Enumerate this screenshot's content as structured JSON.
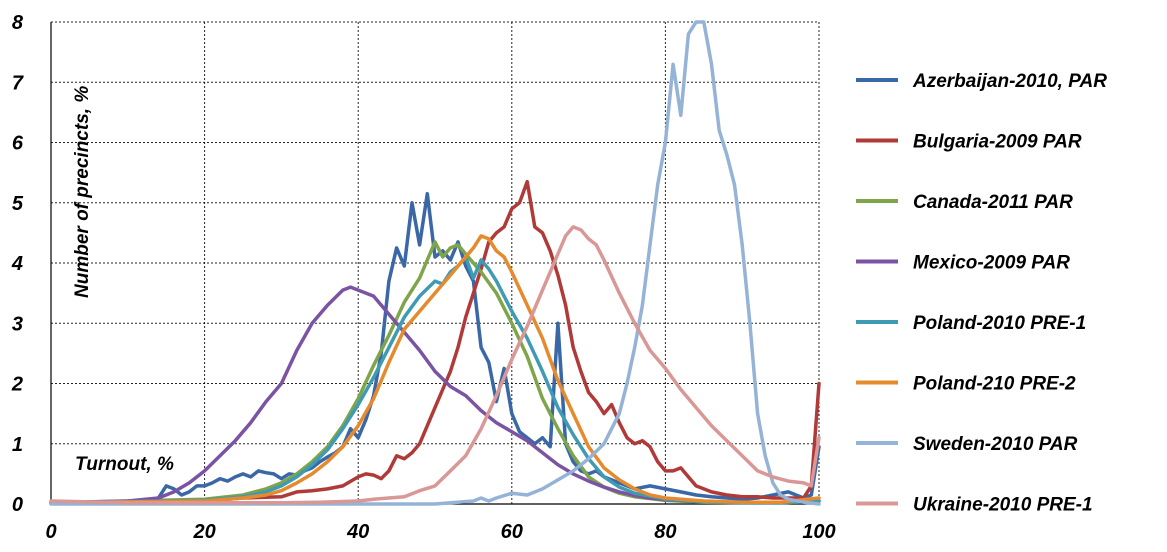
{
  "chart_data": {
    "type": "line",
    "xlabel": "Turnout, %",
    "ylabel": "Number of precincts, %",
    "xlim": [
      0,
      100
    ],
    "ylim": [
      0,
      8
    ],
    "x_ticks": [
      "0",
      "20",
      "40",
      "60",
      "80",
      "100"
    ],
    "y_ticks": [
      "0",
      "1",
      "2",
      "3",
      "4",
      "5",
      "6",
      "7",
      "8"
    ],
    "grid": true,
    "legend_position": "right",
    "series": [
      {
        "name": "Azerbaijan-2010, PAR",
        "color": "#3a67a6",
        "x": [
          0,
          10,
          12,
          14,
          15,
          16,
          17,
          18,
          19,
          20,
          21,
          22,
          23,
          24,
          25,
          26,
          27,
          28,
          29,
          30,
          31,
          32,
          33,
          34,
          35,
          36,
          37,
          38,
          39,
          40,
          41,
          42,
          43,
          44,
          45,
          46,
          47,
          48,
          49,
          50,
          51,
          52,
          53,
          54,
          55,
          56,
          57,
          58,
          59,
          60,
          61,
          62,
          63,
          64,
          65,
          66,
          67,
          68,
          69,
          70,
          71,
          72,
          73,
          74,
          75,
          76,
          78,
          80,
          82,
          84,
          86,
          88,
          90,
          92,
          94,
          96,
          98,
          99,
          100
        ],
        "values": [
          0.02,
          0.02,
          0.05,
          0.1,
          0.3,
          0.25,
          0.15,
          0.2,
          0.3,
          0.3,
          0.35,
          0.42,
          0.38,
          0.45,
          0.5,
          0.45,
          0.55,
          0.52,
          0.5,
          0.42,
          0.5,
          0.48,
          0.55,
          0.6,
          0.7,
          0.78,
          0.85,
          0.95,
          1.25,
          1.1,
          1.4,
          1.8,
          2.5,
          3.7,
          4.25,
          3.95,
          5.0,
          4.3,
          5.15,
          4.1,
          4.2,
          4.05,
          4.35,
          3.95,
          3.7,
          2.6,
          2.35,
          1.7,
          2.25,
          1.5,
          1.2,
          1.1,
          1.0,
          1.1,
          0.95,
          3.0,
          1.0,
          0.7,
          0.55,
          0.5,
          0.55,
          0.45,
          0.4,
          0.35,
          0.3,
          0.25,
          0.3,
          0.25,
          0.2,
          0.15,
          0.12,
          0.1,
          0.08,
          0.1,
          0.15,
          0.2,
          0.1,
          0.15,
          0.95
        ]
      },
      {
        "name": "Bulgaria-2009 PAR",
        "color": "#b03a38",
        "x": [
          0,
          10,
          20,
          25,
          30,
          32,
          34,
          36,
          38,
          40,
          41,
          42,
          43,
          44,
          45,
          46,
          47,
          48,
          49,
          50,
          51,
          52,
          53,
          54,
          55,
          56,
          57,
          58,
          59,
          60,
          61,
          62,
          63,
          64,
          65,
          66,
          67,
          68,
          69,
          70,
          71,
          72,
          73,
          74,
          75,
          76,
          77,
          78,
          79,
          80,
          81,
          82,
          83,
          84,
          85,
          86,
          88,
          90,
          92,
          94,
          96,
          98,
          99,
          100
        ],
        "values": [
          0.02,
          0.03,
          0.05,
          0.1,
          0.12,
          0.2,
          0.22,
          0.25,
          0.3,
          0.45,
          0.5,
          0.48,
          0.42,
          0.55,
          0.8,
          0.75,
          0.85,
          1.0,
          1.3,
          1.6,
          1.9,
          2.2,
          2.6,
          3.1,
          3.5,
          3.9,
          4.35,
          4.5,
          4.6,
          4.9,
          5.0,
          5.35,
          4.6,
          4.5,
          4.2,
          3.8,
          3.3,
          2.6,
          2.2,
          1.85,
          1.7,
          1.5,
          1.65,
          1.35,
          1.1,
          1.0,
          1.05,
          0.95,
          0.7,
          0.55,
          0.55,
          0.6,
          0.45,
          0.3,
          0.25,
          0.2,
          0.15,
          0.12,
          0.12,
          0.1,
          0.1,
          0.1,
          0.3,
          2.0
        ]
      },
      {
        "name": "Canada-2011 PAR",
        "color": "#7fa54b",
        "x": [
          0,
          20,
          25,
          28,
          30,
          32,
          34,
          36,
          38,
          40,
          42,
          44,
          46,
          48,
          49,
          50,
          51,
          52,
          53,
          54,
          56,
          58,
          60,
          62,
          64,
          66,
          68,
          70,
          72,
          74,
          76,
          80,
          85,
          90,
          95,
          100
        ],
        "values": [
          0.02,
          0.08,
          0.15,
          0.25,
          0.35,
          0.5,
          0.7,
          0.95,
          1.3,
          1.75,
          2.3,
          2.8,
          3.35,
          3.75,
          4.05,
          4.35,
          4.1,
          4.25,
          4.3,
          4.15,
          3.85,
          3.5,
          3.0,
          2.45,
          1.75,
          1.25,
          0.8,
          0.45,
          0.28,
          0.18,
          0.12,
          0.06,
          0.03,
          0.02,
          0.02,
          0.05
        ]
      },
      {
        "name": "Mexico-2009 PAR",
        "color": "#7b53a3",
        "x": [
          0,
          10,
          14,
          16,
          18,
          20,
          22,
          24,
          26,
          28,
          30,
          32,
          34,
          36,
          38,
          39,
          40,
          42,
          44,
          46,
          48,
          50,
          52,
          54,
          56,
          58,
          60,
          62,
          64,
          66,
          68,
          70,
          72,
          74,
          76,
          78,
          80,
          85,
          90,
          95,
          100
        ],
        "values": [
          0.02,
          0.05,
          0.1,
          0.2,
          0.35,
          0.55,
          0.8,
          1.05,
          1.35,
          1.7,
          2.0,
          2.55,
          3.0,
          3.3,
          3.55,
          3.6,
          3.55,
          3.45,
          3.15,
          2.85,
          2.55,
          2.2,
          1.95,
          1.8,
          1.55,
          1.35,
          1.2,
          1.05,
          0.85,
          0.65,
          0.5,
          0.38,
          0.28,
          0.2,
          0.14,
          0.1,
          0.07,
          0.04,
          0.02,
          0.02,
          0.05
        ]
      },
      {
        "name": "Poland-2010 PRE-1",
        "color": "#3f9ab4",
        "x": [
          0,
          20,
          25,
          28,
          30,
          32,
          34,
          36,
          38,
          40,
          42,
          44,
          46,
          48,
          50,
          51,
          52,
          53,
          54,
          55,
          56,
          57,
          58,
          60,
          62,
          64,
          66,
          68,
          70,
          72,
          74,
          76,
          80,
          85,
          90,
          95,
          100
        ],
        "values": [
          0.02,
          0.06,
          0.12,
          0.2,
          0.3,
          0.45,
          0.65,
          0.9,
          1.25,
          1.65,
          2.1,
          2.6,
          3.1,
          3.45,
          3.7,
          3.65,
          3.85,
          3.95,
          4.1,
          3.75,
          4.05,
          3.9,
          3.7,
          3.2,
          2.75,
          2.2,
          1.6,
          1.15,
          0.75,
          0.45,
          0.28,
          0.18,
          0.08,
          0.04,
          0.02,
          0.02,
          0.05
        ]
      },
      {
        "name": "Poland-210 PRE-2",
        "color": "#e68a2e",
        "x": [
          0,
          20,
          25,
          28,
          30,
          32,
          34,
          36,
          38,
          40,
          42,
          44,
          46,
          48,
          50,
          52,
          54,
          55,
          56,
          57,
          58,
          59,
          60,
          62,
          64,
          66,
          68,
          70,
          72,
          74,
          76,
          78,
          80,
          85,
          90,
          95,
          100
        ],
        "values": [
          0.02,
          0.05,
          0.1,
          0.15,
          0.22,
          0.35,
          0.5,
          0.7,
          0.95,
          1.3,
          1.75,
          2.35,
          2.9,
          3.2,
          3.5,
          3.8,
          4.1,
          4.25,
          4.45,
          4.4,
          4.2,
          4.1,
          3.85,
          3.3,
          2.75,
          2.05,
          1.5,
          0.95,
          0.6,
          0.4,
          0.25,
          0.15,
          0.1,
          0.05,
          0.03,
          0.03,
          0.1
        ]
      },
      {
        "name": "Sweden-2010 PAR",
        "color": "#95b3d7",
        "x": [
          0,
          40,
          50,
          55,
          56,
          57,
          58,
          60,
          62,
          64,
          66,
          68,
          70,
          72,
          74,
          75,
          76,
          77,
          78,
          79,
          80,
          81,
          82,
          83,
          84,
          85,
          86,
          87,
          88,
          89,
          90,
          91,
          92,
          93,
          94,
          95,
          96,
          98,
          100
        ],
        "values": [
          0.0,
          0.0,
          0.0,
          0.05,
          0.1,
          0.05,
          0.1,
          0.18,
          0.15,
          0.25,
          0.4,
          0.55,
          0.75,
          1.0,
          1.5,
          2.0,
          2.6,
          3.3,
          4.3,
          5.3,
          6.0,
          7.3,
          6.45,
          7.8,
          8.3,
          8.0,
          7.3,
          6.2,
          5.8,
          5.3,
          4.3,
          3.0,
          1.5,
          0.8,
          0.35,
          0.15,
          0.08,
          0.03,
          0.0
        ]
      },
      {
        "name": "Ukraine-2010 PRE-1",
        "color": "#d99795",
        "x": [
          0,
          10,
          20,
          30,
          35,
          40,
          42,
          44,
          46,
          48,
          50,
          52,
          54,
          56,
          58,
          60,
          62,
          64,
          66,
          67,
          68,
          69,
          70,
          71,
          72,
          74,
          76,
          78,
          80,
          82,
          84,
          86,
          88,
          90,
          92,
          94,
          96,
          98,
          99,
          100
        ],
        "values": [
          0.05,
          0.02,
          0.02,
          0.02,
          0.03,
          0.05,
          0.08,
          0.1,
          0.12,
          0.22,
          0.3,
          0.55,
          0.8,
          1.25,
          1.8,
          2.4,
          2.95,
          3.55,
          4.15,
          4.45,
          4.6,
          4.55,
          4.4,
          4.3,
          4.05,
          3.5,
          3.0,
          2.55,
          2.25,
          1.9,
          1.6,
          1.3,
          1.05,
          0.8,
          0.55,
          0.45,
          0.38,
          0.35,
          0.3,
          1.1
        ]
      }
    ]
  }
}
